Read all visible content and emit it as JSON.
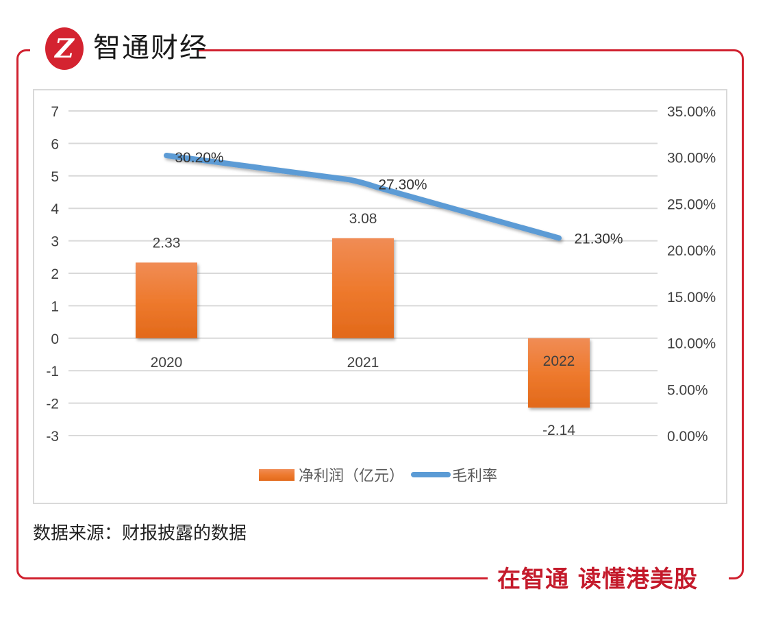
{
  "header": {
    "logo_glyph": "Z",
    "brand_name": "智通财经"
  },
  "footer": {
    "slogan": "在智通  读懂港美股",
    "source_note": "数据来源：财报披露的数据"
  },
  "colors": {
    "frame_red": "#d0202e",
    "bar_orange": "#ed7d31",
    "line_blue": "#5b9bd5",
    "grid": "#d9d9d9",
    "text": "#404040"
  },
  "chart_data": {
    "type": "bar+line",
    "categories": [
      "2020",
      "2021",
      "2022"
    ],
    "series": [
      {
        "name": "净利润（亿元）",
        "type": "bar",
        "axis": "left",
        "values": [
          2.33,
          3.08,
          -2.14
        ],
        "labels": [
          "2.33",
          "3.08",
          "-2.14"
        ],
        "color": "#ed7d31"
      },
      {
        "name": "毛利率",
        "type": "line",
        "axis": "right",
        "values": [
          30.2,
          27.3,
          21.3
        ],
        "labels": [
          "30.20%",
          "27.30%",
          "21.30%"
        ],
        "color": "#5b9bd5"
      }
    ],
    "left_axis": {
      "min": -3,
      "max": 7,
      "ticks": [
        "7",
        "6",
        "5",
        "4",
        "3",
        "2",
        "1",
        "0",
        "-1",
        "-2",
        "-3"
      ]
    },
    "right_axis": {
      "min": 0,
      "max": 35,
      "ticks": [
        "35.00%",
        "30.00%",
        "25.00%",
        "20.00%",
        "15.00%",
        "10.00%",
        "5.00%",
        "0.00%"
      ]
    },
    "grid": true,
    "legend": {
      "position": "bottom",
      "items": [
        "净利润（亿元）",
        "毛利率"
      ]
    },
    "title": "",
    "xlabel": "",
    "ylabel": ""
  }
}
